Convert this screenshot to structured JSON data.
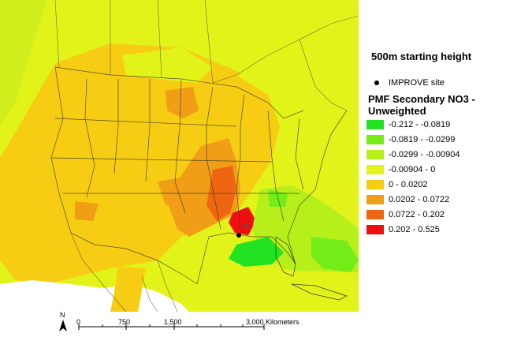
{
  "title": "500m starting height",
  "site_label": "IMPROVE site",
  "legend_title": "PMF Secondary NO3 - Unweighted",
  "legend": [
    {
      "label": "-0.212 - -0.0819",
      "color": "#22e322"
    },
    {
      "label": "-0.0819 - -0.0299",
      "color": "#74ec18"
    },
    {
      "label": "-0.0299 - -0.00904",
      "color": "#b6ef1a"
    },
    {
      "label": "-0.00904 - 0",
      "color": "#e2f31a"
    },
    {
      "label": "0 - 0.0202",
      "color": "#f6cd12"
    },
    {
      "label": "0.0202 - 0.0722",
      "color": "#f09e16"
    },
    {
      "label": "0.0722 - 0.202",
      "color": "#ef6612"
    },
    {
      "label": "0.202 - 0.525",
      "color": "#ee1010"
    }
  ],
  "scale": {
    "ticks": [
      "0",
      "750",
      "1,500",
      "3,000 Kilometers"
    ],
    "north": "N"
  }
}
